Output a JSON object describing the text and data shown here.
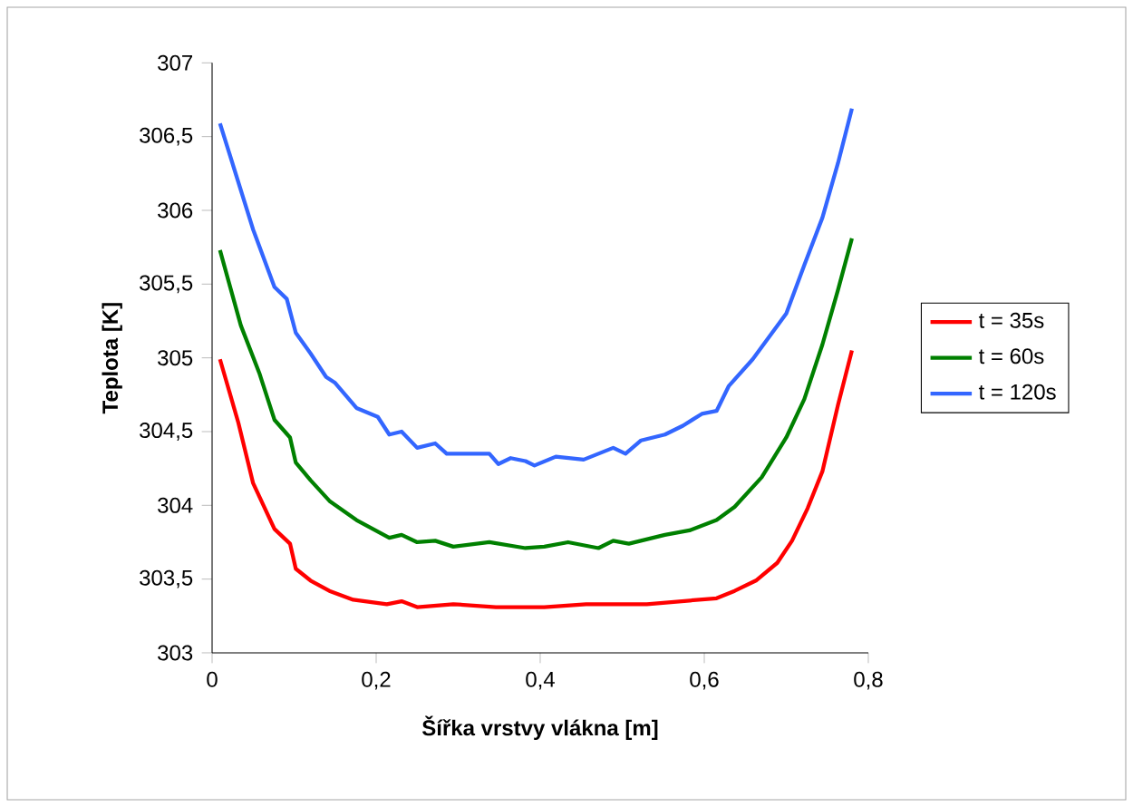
{
  "chart_data": {
    "type": "line",
    "xlabel": "Šířka vrstvy vlákna [m]",
    "ylabel": "Teplota [K]",
    "xlim": [
      0,
      0.8
    ],
    "ylim": [
      303,
      307
    ],
    "xticks": [
      0,
      {
        "value": 0.2,
        "label": "0,2"
      },
      {
        "value": 0.4,
        "label": "0,4"
      },
      {
        "value": 0.6,
        "label": "0,6"
      },
      {
        "value": 0.8,
        "label": "0,8"
      }
    ],
    "yticks": [
      303,
      {
        "value": 303.5,
        "label": "303,5"
      },
      304,
      {
        "value": 304.5,
        "label": "304,5"
      },
      305,
      {
        "value": 305.5,
        "label": "305,5"
      },
      306,
      {
        "value": 306.5,
        "label": "306,5"
      },
      307
    ],
    "legend": "right",
    "grid": false,
    "marker": "none",
    "line_style": "solid",
    "series": [
      {
        "name": "t = 35s",
        "color": "#ff0000",
        "x": [
          0.0096,
          0.032,
          0.05,
          0.076,
          0.095,
          0.102,
          0.12,
          0.143,
          0.172,
          0.213,
          0.231,
          0.25,
          0.294,
          0.346,
          0.405,
          0.456,
          0.53,
          0.615,
          0.637,
          0.663,
          0.689,
          0.707,
          0.726,
          0.744,
          0.763,
          0.78
        ],
        "values": [
          304.99,
          304.56,
          304.15,
          303.84,
          303.74,
          303.57,
          303.49,
          303.42,
          303.36,
          303.33,
          303.35,
          303.31,
          303.33,
          303.31,
          303.31,
          303.33,
          303.33,
          303.37,
          303.42,
          303.49,
          303.61,
          303.76,
          303.98,
          304.23,
          304.68,
          305.05
        ]
      },
      {
        "name": "t = 60s",
        "color": "#008000",
        "x": [
          0.0096,
          0.035,
          0.058,
          0.076,
          0.095,
          0.102,
          0.12,
          0.143,
          0.176,
          0.216,
          0.231,
          0.25,
          0.272,
          0.294,
          0.338,
          0.382,
          0.405,
          0.434,
          0.471,
          0.489,
          0.508,
          0.552,
          0.582,
          0.615,
          0.637,
          0.67,
          0.7,
          0.722,
          0.744,
          0.763,
          0.78
        ],
        "values": [
          305.73,
          305.22,
          304.89,
          304.58,
          304.46,
          304.29,
          304.17,
          304.03,
          303.9,
          303.78,
          303.8,
          303.75,
          303.76,
          303.72,
          303.75,
          303.71,
          303.72,
          303.75,
          303.71,
          303.76,
          303.74,
          303.8,
          303.83,
          303.9,
          303.99,
          304.19,
          304.46,
          304.72,
          305.09,
          305.46,
          305.81
        ]
      },
      {
        "name": "t = 120s",
        "color": "#3366ff",
        "x": [
          0.0096,
          0.05,
          0.076,
          0.091,
          0.102,
          0.12,
          0.139,
          0.15,
          0.176,
          0.202,
          0.216,
          0.231,
          0.25,
          0.272,
          0.286,
          0.338,
          0.349,
          0.364,
          0.382,
          0.393,
          0.419,
          0.453,
          0.489,
          0.504,
          0.523,
          0.552,
          0.574,
          0.597,
          0.615,
          0.63,
          0.659,
          0.7,
          0.722,
          0.744,
          0.763,
          0.78
        ],
        "values": [
          306.59,
          305.87,
          305.48,
          305.4,
          305.17,
          305.03,
          304.87,
          304.83,
          304.66,
          304.6,
          304.48,
          304.5,
          304.39,
          304.42,
          304.35,
          304.35,
          304.28,
          304.32,
          304.3,
          304.27,
          304.33,
          304.31,
          304.39,
          304.35,
          304.44,
          304.48,
          304.54,
          304.62,
          304.64,
          304.81,
          304.99,
          305.3,
          305.63,
          305.95,
          306.32,
          306.69
        ]
      }
    ]
  }
}
